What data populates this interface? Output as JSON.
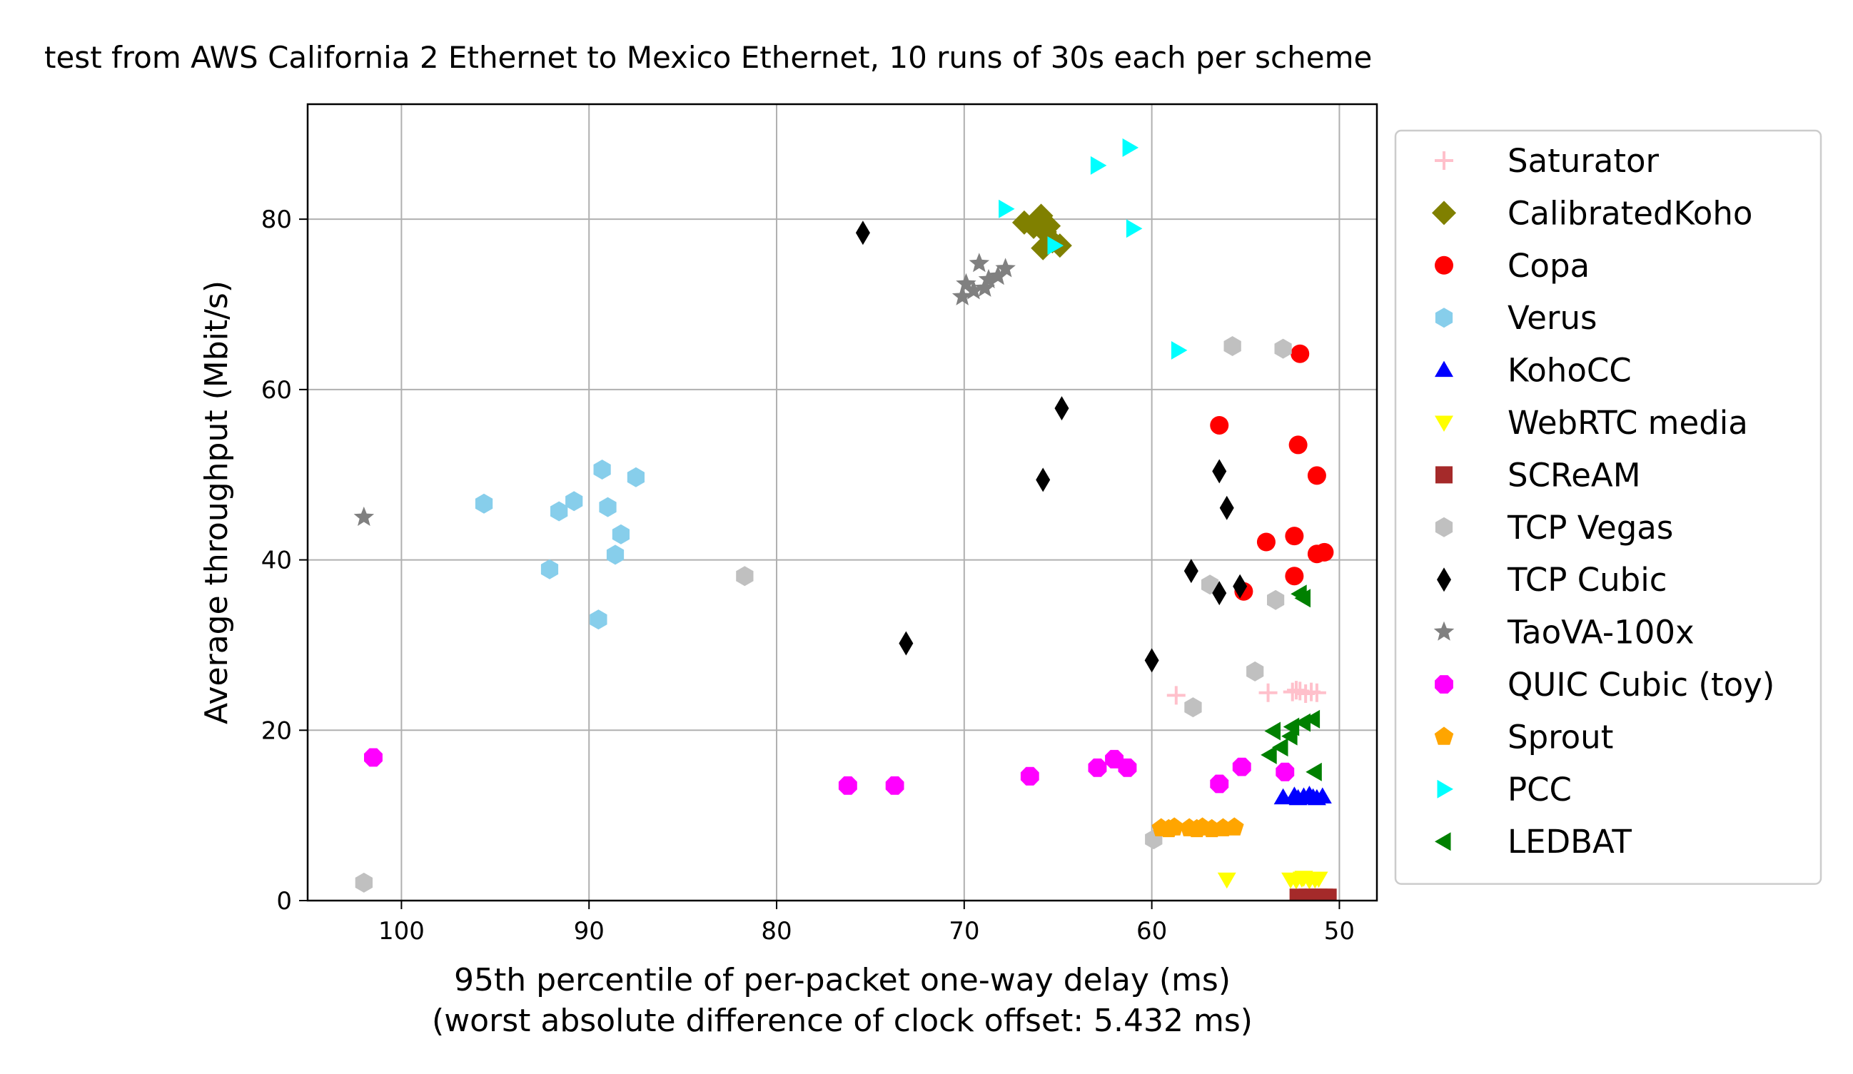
{
  "chart_data": {
    "type": "scatter",
    "title": "test from AWS California 2 Ethernet to Mexico Ethernet, 10 runs of 30s each per scheme",
    "xlabel_line1": "95th percentile of per-packet one-way delay (ms)",
    "xlabel_line2": "(worst absolute difference of clock offset: 5.432 ms)",
    "ylabel": "Average throughput (Mbit/s)",
    "xlim": [
      105,
      48
    ],
    "x_inverted": true,
    "ylim": [
      0,
      93.5
    ],
    "grid": true,
    "legend_position": "outside-right",
    "xticks": [
      100,
      90,
      80,
      70,
      60,
      50
    ],
    "yticks": [
      0,
      20,
      40,
      60,
      80
    ],
    "series": [
      {
        "name": "Saturator",
        "marker": "plus",
        "color": "#ffc0cb",
        "points": [
          [
            58.7,
            24.1
          ],
          [
            53.8,
            24.4
          ],
          [
            52.5,
            24.5
          ],
          [
            52.1,
            24.6
          ],
          [
            51.5,
            24.5
          ],
          [
            51.2,
            24.4
          ],
          [
            52.3,
            24.7
          ],
          [
            51.8,
            24.3
          ]
        ]
      },
      {
        "name": "CalibratedKoho",
        "marker": "diamond",
        "color": "#808000",
        "points": [
          [
            66.8,
            79.6
          ],
          [
            65.9,
            80.4
          ],
          [
            66.3,
            79.1
          ],
          [
            65.7,
            78.5
          ],
          [
            65.3,
            77.4
          ],
          [
            64.9,
            76.9
          ],
          [
            65.8,
            76.6
          ],
          [
            65.5,
            79.2
          ]
        ]
      },
      {
        "name": "Copa",
        "marker": "circle",
        "color": "#ff0000",
        "points": [
          [
            52.1,
            64.2
          ],
          [
            56.4,
            55.8
          ],
          [
            52.2,
            53.5
          ],
          [
            51.2,
            49.9
          ],
          [
            53.9,
            42.1
          ],
          [
            52.4,
            42.8
          ],
          [
            51.2,
            40.7
          ],
          [
            50.8,
            40.9
          ],
          [
            52.4,
            38.1
          ],
          [
            55.1,
            36.3
          ]
        ]
      },
      {
        "name": "Verus",
        "marker": "hexagon",
        "color": "#87ceeb",
        "points": [
          [
            95.6,
            46.6
          ],
          [
            91.6,
            45.7
          ],
          [
            90.8,
            46.9
          ],
          [
            89.3,
            50.6
          ],
          [
            87.5,
            49.7
          ],
          [
            89.0,
            46.2
          ],
          [
            88.3,
            43.0
          ],
          [
            88.6,
            40.6
          ],
          [
            92.1,
            38.9
          ],
          [
            89.5,
            33.0
          ]
        ]
      },
      {
        "name": "KohoCC",
        "marker": "triangle-up",
        "color": "#0000ff",
        "points": [
          [
            53.0,
            12.1
          ],
          [
            52.4,
            12.3
          ],
          [
            51.9,
            12.2
          ],
          [
            51.6,
            12.4
          ],
          [
            51.2,
            12.0
          ],
          [
            50.9,
            12.2
          ],
          [
            52.2,
            12.0
          ],
          [
            51.4,
            12.1
          ]
        ]
      },
      {
        "name": "WebRTC media",
        "marker": "triangle-down",
        "color": "#ffff00",
        "points": [
          [
            56.0,
            2.5
          ],
          [
            52.6,
            2.5
          ],
          [
            52.0,
            2.6
          ],
          [
            51.6,
            2.4
          ],
          [
            51.3,
            2.5
          ],
          [
            51.9,
            2.7
          ],
          [
            52.3,
            2.4
          ],
          [
            51.1,
            2.6
          ]
        ]
      },
      {
        "name": "SCReAM",
        "marker": "square",
        "color": "#a52a2a",
        "points": [
          [
            52.2,
            0.4
          ],
          [
            51.7,
            0.4
          ],
          [
            51.4,
            0.4
          ],
          [
            51.1,
            0.4
          ],
          [
            50.8,
            0.4
          ],
          [
            51.9,
            0.3
          ],
          [
            50.6,
            0.4
          ]
        ]
      },
      {
        "name": "TCP Vegas",
        "marker": "hexagon",
        "color": "#c0c0c0",
        "points": [
          [
            55.7,
            65.1
          ],
          [
            53.0,
            64.8
          ],
          [
            81.7,
            38.1
          ],
          [
            56.9,
            37.1
          ],
          [
            53.4,
            35.3
          ],
          [
            54.5,
            26.9
          ],
          [
            57.8,
            22.7
          ],
          [
            59.9,
            7.2
          ],
          [
            102.0,
            2.1
          ]
        ]
      },
      {
        "name": "TCP Cubic",
        "marker": "thin-diamond",
        "color": "#000000",
        "points": [
          [
            75.4,
            78.4
          ],
          [
            64.8,
            57.8
          ],
          [
            65.8,
            49.4
          ],
          [
            56.4,
            50.4
          ],
          [
            56.0,
            46.1
          ],
          [
            57.9,
            38.7
          ],
          [
            55.3,
            36.9
          ],
          [
            56.4,
            36.1
          ],
          [
            73.1,
            30.2
          ],
          [
            60.0,
            28.2
          ]
        ]
      },
      {
        "name": "TaoVA-100x",
        "marker": "star",
        "color": "#808080",
        "points": [
          [
            102.0,
            45.0
          ],
          [
            69.2,
            74.8
          ],
          [
            69.9,
            72.4
          ],
          [
            69.5,
            71.6
          ],
          [
            68.7,
            72.9
          ],
          [
            68.2,
            73.3
          ],
          [
            67.8,
            74.2
          ],
          [
            70.1,
            70.9
          ],
          [
            68.9,
            71.9
          ]
        ]
      },
      {
        "name": "QUIC Cubic (toy)",
        "marker": "octagon",
        "color": "#ff00ff",
        "points": [
          [
            101.5,
            16.8
          ],
          [
            76.2,
            13.5
          ],
          [
            73.7,
            13.5
          ],
          [
            66.5,
            14.6
          ],
          [
            62.9,
            15.6
          ],
          [
            62.0,
            16.6
          ],
          [
            61.3,
            15.6
          ],
          [
            56.4,
            13.7
          ],
          [
            55.2,
            15.7
          ],
          [
            52.9,
            15.1
          ]
        ]
      },
      {
        "name": "Sprout",
        "marker": "pentagon",
        "color": "#ffa500",
        "points": [
          [
            59.5,
            8.5
          ],
          [
            58.8,
            8.6
          ],
          [
            58.0,
            8.5
          ],
          [
            57.3,
            8.6
          ],
          [
            56.8,
            8.4
          ],
          [
            56.2,
            8.5
          ],
          [
            55.6,
            8.6
          ],
          [
            57.6,
            8.4
          ],
          [
            59.1,
            8.4
          ]
        ]
      },
      {
        "name": "PCC",
        "marker": "triangle-right",
        "color": "#00ffff",
        "points": [
          [
            61.2,
            88.4
          ],
          [
            62.9,
            86.3
          ],
          [
            67.8,
            81.2
          ],
          [
            65.2,
            76.9
          ],
          [
            61.0,
            78.9
          ],
          [
            58.6,
            64.6
          ]
        ]
      },
      {
        "name": "LEDBAT",
        "marker": "triangle-left",
        "color": "#008000",
        "points": [
          [
            52.1,
            36.0
          ],
          [
            51.9,
            35.5
          ],
          [
            53.5,
            19.9
          ],
          [
            52.5,
            20.4
          ],
          [
            51.9,
            20.9
          ],
          [
            51.4,
            21.3
          ],
          [
            52.6,
            19.3
          ],
          [
            53.1,
            18.0
          ],
          [
            53.7,
            17.1
          ],
          [
            51.3,
            15.1
          ]
        ]
      }
    ]
  }
}
